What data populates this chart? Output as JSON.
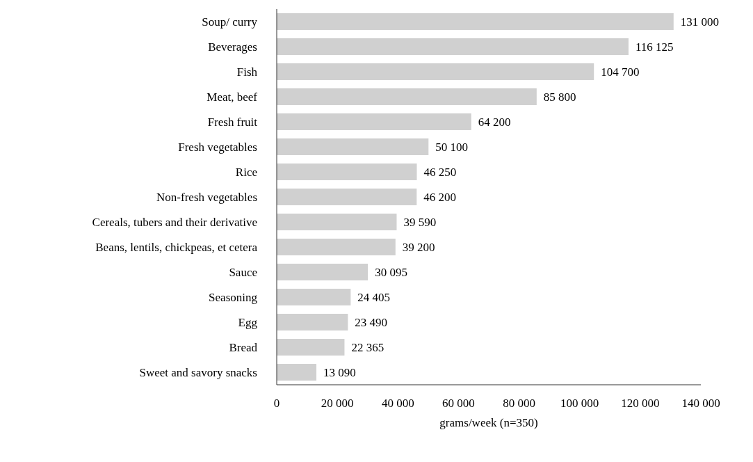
{
  "chart_data": {
    "type": "bar",
    "orientation": "horizontal",
    "xlabel": "grams/week (n=350)",
    "categories": [
      "Soup/ curry",
      "Beverages",
      "Fish",
      "Meat, beef",
      "Fresh fruit",
      "Fresh vegetables",
      "Rice",
      "Non-fresh vegetables ",
      "Cereals, tubers and their derivative",
      "Beans, lentils, chickpeas, et cetera",
      "Sauce ",
      "Seasoning",
      "Egg",
      "Bread",
      "Sweet and savory snacks"
    ],
    "values": [
      131000,
      116125,
      104700,
      85800,
      64200,
      50100,
      46250,
      46200,
      39590,
      39200,
      30095,
      24405,
      23490,
      22365,
      13090
    ],
    "value_labels": [
      "131 000",
      "116 125",
      "104 700",
      "85 800",
      "64 200",
      "50 100",
      "46 250",
      "46 200",
      "39 590",
      "39 200",
      "30 095",
      "24 405",
      "23 490",
      "22 365",
      "13 090"
    ],
    "color": "#d0d0d0",
    "xlim": [
      0,
      140000
    ],
    "xticks": [
      0,
      {
        "value": 20000,
        "label": "20 000"
      },
      {
        "value": 40000,
        "label": "40 000"
      },
      {
        "value": 60000,
        "label": "60 000"
      },
      {
        "value": 80000,
        "label": "80 000"
      },
      {
        "value": 100000,
        "label": "100 000"
      },
      {
        "value": 120000,
        "label": "120 000"
      },
      {
        "value": 140000,
        "label": "140 000"
      }
    ],
    "grid": false,
    "legend": false
  }
}
